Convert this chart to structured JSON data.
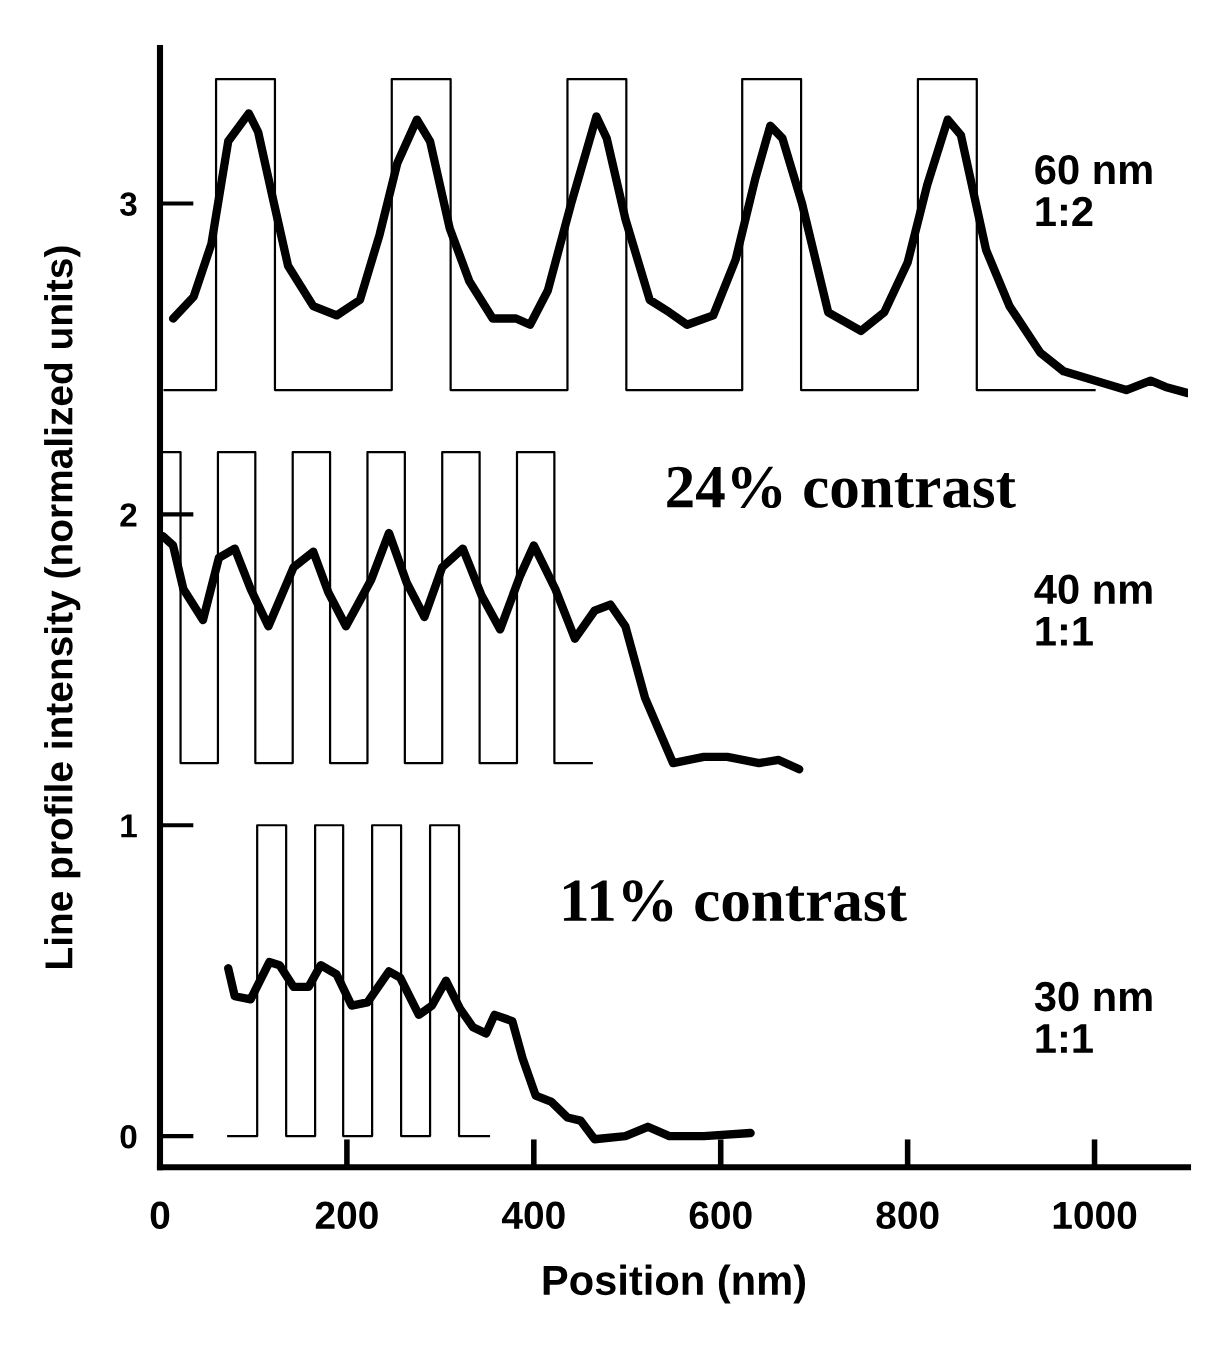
{
  "chart_data": {
    "type": "line",
    "xlabel": "Position (nm)",
    "ylabel": "Line profile intensity (normalized units)",
    "xlim": [
      0,
      1100
    ],
    "ylim": [
      -0.1,
      3.5
    ],
    "xticks": [
      0,
      200,
      400,
      600,
      800,
      1000
    ],
    "yticks": [
      0,
      1,
      2,
      3
    ],
    "grid": false,
    "legend": false,
    "series": [
      {
        "type": "step",
        "color": "#000000",
        "x": [
          5,
          60,
          123,
          248,
          311,
          436,
          499,
          623,
          686,
          811,
          874,
          1000
        ],
        "values": [
          2.4,
          3.4,
          2.4,
          3.4,
          2.4,
          3.4,
          2.4,
          3.4,
          2.4,
          3.4,
          2.4,
          2.4
        ]
      },
      {
        "type": "step",
        "color": "#000000",
        "x": [
          0,
          22,
          62,
          102,
          142,
          182,
          222,
          262,
          302,
          342,
          382,
          422,
          462
        ],
        "values": [
          2.2,
          1.2,
          2.2,
          1.2,
          2.2,
          1.2,
          2.2,
          1.2,
          2.2,
          1.2,
          2.2,
          1.2,
          1.2
        ]
      },
      {
        "type": "step",
        "color": "#000000",
        "x": [
          73,
          104,
          135,
          166,
          196,
          227,
          258,
          289,
          320,
          352
        ],
        "values": [
          0,
          1,
          0,
          1,
          0,
          1,
          0,
          1,
          0,
          0
        ]
      },
      {
        "type": "line",
        "color": "#000000",
        "x": [
          14,
          36,
          55,
          73,
          95,
          105,
          122,
          137,
          164,
          189,
          214,
          235,
          254,
          275,
          289,
          310,
          331,
          356,
          381,
          396,
          415,
          440,
          467,
          478,
          498,
          524,
          545,
          564,
          592,
          616,
          637,
          653,
          666,
          687,
          715,
          750,
          775,
          800,
          821,
          843,
          857,
          884,
          909,
          942,
          967,
          1001,
          1034,
          1060,
          1076,
          1100
        ],
        "values": [
          2.63,
          2.7,
          2.87,
          3.2,
          3.29,
          3.23,
          3.0,
          2.8,
          2.67,
          2.64,
          2.69,
          2.9,
          3.13,
          3.27,
          3.2,
          2.92,
          2.75,
          2.63,
          2.63,
          2.61,
          2.72,
          3.0,
          3.28,
          3.21,
          2.95,
          2.69,
          2.65,
          2.61,
          2.64,
          2.82,
          3.08,
          3.25,
          3.21,
          3.0,
          2.65,
          2.59,
          2.65,
          2.81,
          3.06,
          3.27,
          3.22,
          2.85,
          2.67,
          2.52,
          2.46,
          2.43,
          2.4,
          2.43,
          2.41,
          2.39
        ]
      },
      {
        "type": "line",
        "color": "#000000",
        "x": [
          3,
          14,
          25,
          46,
          63,
          80,
          97,
          116,
          143,
          164,
          180,
          199,
          226,
          245,
          264,
          283,
          302,
          324,
          344,
          364,
          385,
          400,
          423,
          444,
          465,
          482,
          498,
          519,
          549,
          582,
          607,
          641,
          662,
          684
        ],
        "values": [
          1.93,
          1.9,
          1.76,
          1.66,
          1.86,
          1.89,
          1.76,
          1.64,
          1.83,
          1.88,
          1.75,
          1.64,
          1.79,
          1.94,
          1.78,
          1.67,
          1.83,
          1.89,
          1.74,
          1.63,
          1.8,
          1.9,
          1.76,
          1.6,
          1.69,
          1.71,
          1.64,
          1.41,
          1.2,
          1.22,
          1.22,
          1.2,
          1.21,
          1.18
        ]
      },
      {
        "type": "line",
        "color": "#000000",
        "x": [
          73,
          80,
          97,
          117,
          128,
          143,
          159,
          172,
          189,
          205,
          222,
          245,
          257,
          277,
          291,
          306,
          321,
          335,
          349,
          358,
          377,
          388,
          402,
          419,
          436,
          450,
          465,
          498,
          522,
          545,
          582,
          632
        ],
        "values": [
          0.54,
          0.45,
          0.44,
          0.56,
          0.55,
          0.48,
          0.48,
          0.55,
          0.52,
          0.42,
          0.43,
          0.53,
          0.51,
          0.39,
          0.42,
          0.5,
          0.41,
          0.35,
          0.33,
          0.39,
          0.37,
          0.25,
          0.13,
          0.11,
          0.06,
          0.05,
          -0.01,
          0.0,
          0.03,
          0.0,
          0.0,
          0.01
        ]
      }
    ],
    "annotations": [
      "60 nm\n1:2",
      "24% contrast",
      "40 nm\n1:1",
      "11% contrast",
      "30 nm\n1:1"
    ]
  }
}
